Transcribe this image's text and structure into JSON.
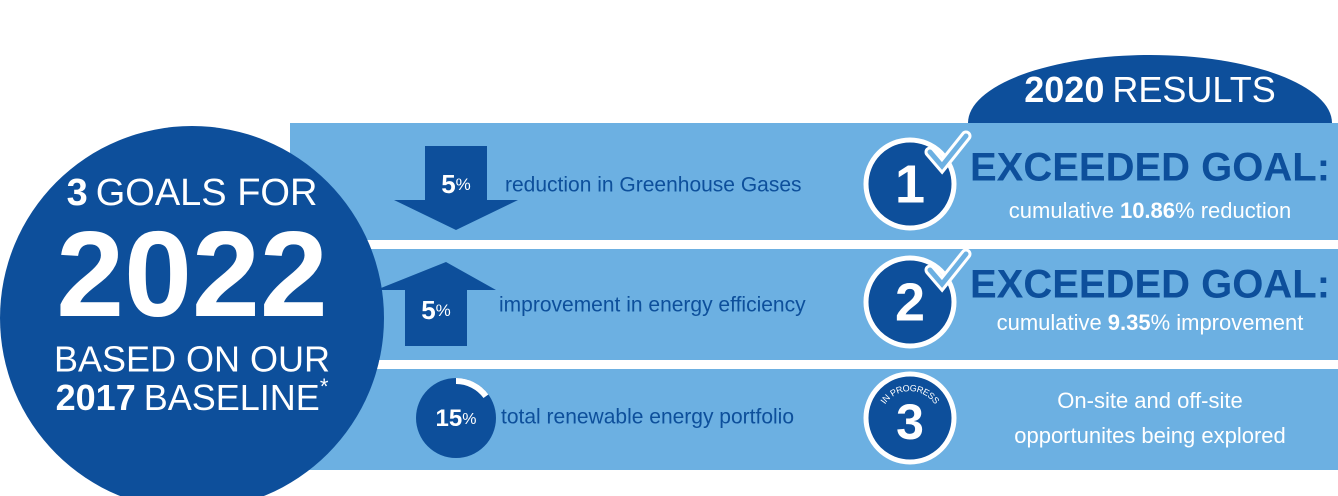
{
  "header": {
    "year": "2020",
    "text": "RESULTS"
  },
  "circle": {
    "count": "3",
    "count_text": "GOALS FOR",
    "year": "2022",
    "line3": "BASED ON OUR",
    "baseline_year": "2017",
    "baseline_text": "BASELINE",
    "footnote": "*"
  },
  "goals": [
    {
      "value": 5,
      "unit": "%",
      "text": "reduction in Greenhouse Gases",
      "number": "1",
      "result_title": "EXCEEDED GOAL:",
      "result_prefix": "cumulative",
      "result_value": "10.86",
      "result_suffix": "% reduction"
    },
    {
      "value": 5,
      "unit": "%",
      "text": "improvement in energy efficiency",
      "number": "2",
      "result_title": "EXCEEDED GOAL:",
      "result_prefix": "cumulative",
      "result_value": "9.35",
      "result_suffix": "% improvement"
    },
    {
      "value": 15,
      "unit": "%",
      "text": "total renewable energy portfolio",
      "number": "3",
      "status": "IN PROGRESS",
      "result_lines": [
        "On-site and off-site",
        "opportunites being explored"
      ]
    }
  ]
}
